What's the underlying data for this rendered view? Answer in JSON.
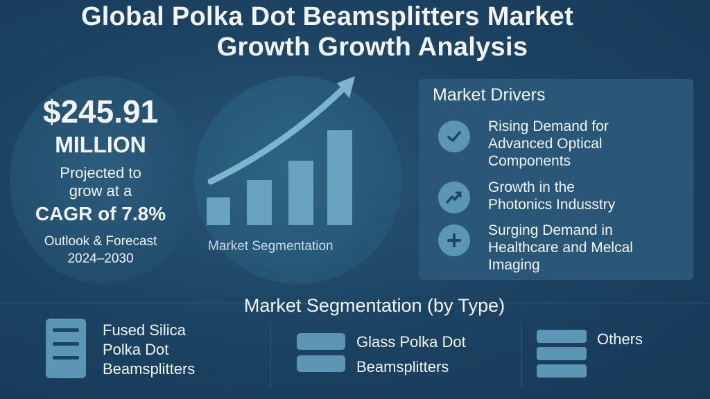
{
  "header": {
    "title_line1": "Global Polka Dot Beamsplitters Market",
    "title_line2": "Growth Growth Analysis"
  },
  "summary": {
    "value": "$245.91",
    "unit": "MILLION",
    "projected_line1": "Projected to",
    "projected_line2": "grow at a",
    "cagr": "CAGR of 7.8%",
    "outlook_line1": "Outlook & Forecast",
    "outlook_line2": "2024–2030"
  },
  "graphic": {
    "label": "Market Segmentation"
  },
  "drivers": {
    "title": "Market Drivers",
    "items": [
      {
        "icon": "check-icon",
        "line1": "Rising Demand for",
        "line2": "Advanced Optical",
        "line3": "Components"
      },
      {
        "icon": "trend-up-icon",
        "line1": "Growth in the",
        "line2": "Photonics Indusstry",
        "line3": ""
      },
      {
        "icon": "plus-icon",
        "line1": "Surging Demand in",
        "line2": "Healthcare and Melcal",
        "line3": "Imaging"
      }
    ]
  },
  "segmentation": {
    "heading": "Market Segmentation (by Type)",
    "items": [
      {
        "line1": "Fused Silica",
        "line2": "Polka Dot",
        "line3": "Beamsplitters"
      },
      {
        "line1": "Glass Polka Dot",
        "line2": "Beamsplitters"
      },
      {
        "line1": "Others"
      }
    ]
  },
  "colors": {
    "background": "#1d4463",
    "panel": "#2a5677",
    "accent": "#5b97b5",
    "bars": "#6aa3c0"
  }
}
